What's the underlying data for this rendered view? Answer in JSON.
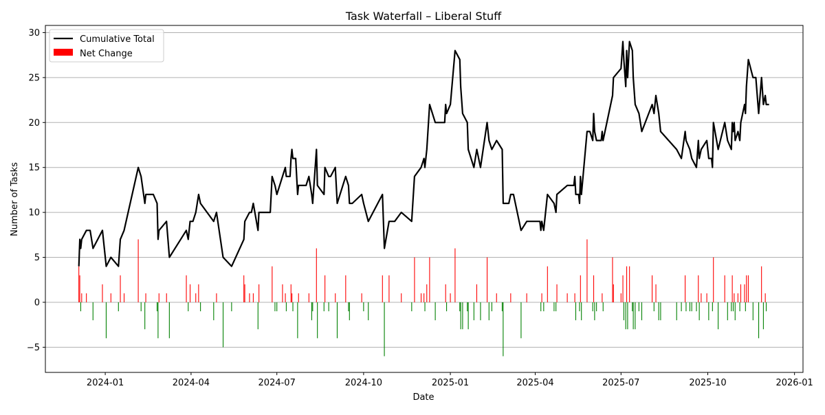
{
  "chart_data": {
    "type": "bar+line",
    "title": "Task Waterfall – Liberal Stuff",
    "xlabel": "Date",
    "ylabel": "Number of Tasks",
    "x_origin": "2024-01-01",
    "x_unit": "days since x_origin",
    "xlim_days": [
      -63.5,
      740
    ],
    "ylim": [
      -7.8,
      30.8
    ],
    "x_ticks": [
      {
        "day": 0,
        "label": "2024-01"
      },
      {
        "day": 91,
        "label": "2024-04"
      },
      {
        "day": 182,
        "label": "2024-07"
      },
      {
        "day": 274,
        "label": "2024-10"
      },
      {
        "day": 366,
        "label": "2025-01"
      },
      {
        "day": 456,
        "label": "2025-04"
      },
      {
        "day": 547,
        "label": "2025-07"
      },
      {
        "day": 639,
        "label": "2025-10"
      },
      {
        "day": 731,
        "label": "2026-01"
      }
    ],
    "y_ticks": [
      -5,
      0,
      5,
      10,
      15,
      20,
      25,
      30
    ],
    "grid": "horizontal",
    "legend_position": "top-left",
    "colors": {
      "total": "#000000",
      "positive": "#ff0000",
      "negative": "#008000",
      "grid": "#b0b0b0"
    },
    "series": [
      {
        "name": "Cumulative Total",
        "kind": "line",
        "points": [
          [
            -28,
            4
          ],
          [
            -27,
            7
          ],
          [
            -26,
            6
          ],
          [
            -25,
            7
          ],
          [
            -20,
            8
          ],
          [
            -16,
            8
          ],
          [
            -13,
            6
          ],
          [
            -3,
            8
          ],
          [
            1,
            4
          ],
          [
            6,
            5
          ],
          [
            14,
            4
          ],
          [
            16,
            7
          ],
          [
            20,
            8
          ],
          [
            35,
            15
          ],
          [
            38,
            14
          ],
          [
            42,
            11
          ],
          [
            43,
            12
          ],
          [
            51,
            12
          ],
          [
            55,
            11
          ],
          [
            56,
            7
          ],
          [
            57,
            8
          ],
          [
            65,
            9
          ],
          [
            68,
            5
          ],
          [
            86,
            8
          ],
          [
            88,
            7
          ],
          [
            90,
            9
          ],
          [
            93,
            9
          ],
          [
            96,
            10
          ],
          [
            99,
            12
          ],
          [
            101,
            11
          ],
          [
            115,
            9
          ],
          [
            118,
            10
          ],
          [
            125,
            5
          ],
          [
            134,
            4
          ],
          [
            147,
            7
          ],
          [
            148,
            9
          ],
          [
            153,
            10
          ],
          [
            155,
            10
          ],
          [
            157,
            11
          ],
          [
            162,
            8
          ],
          [
            163,
            10
          ],
          [
            175,
            10
          ],
          [
            177,
            14
          ],
          [
            180,
            13
          ],
          [
            182,
            12
          ],
          [
            188,
            14
          ],
          [
            191,
            15
          ],
          [
            192,
            14
          ],
          [
            196,
            14
          ],
          [
            197,
            16
          ],
          [
            198,
            17
          ],
          [
            199,
            16
          ],
          [
            202,
            16
          ],
          [
            204,
            12
          ],
          [
            205,
            13
          ],
          [
            213,
            13
          ],
          [
            216,
            14
          ],
          [
            219,
            12
          ],
          [
            220,
            11
          ],
          [
            224,
            17
          ],
          [
            225,
            13
          ],
          [
            232,
            12
          ],
          [
            233,
            15
          ],
          [
            237,
            14
          ],
          [
            239,
            14
          ],
          [
            244,
            15
          ],
          [
            246,
            11
          ],
          [
            255,
            14
          ],
          [
            258,
            13
          ],
          [
            259,
            11
          ],
          [
            262,
            11
          ],
          [
            272,
            12
          ],
          [
            274,
            11
          ],
          [
            279,
            9
          ],
          [
            294,
            12
          ],
          [
            296,
            6
          ],
          [
            301,
            9
          ],
          [
            307,
            9
          ],
          [
            314,
            10
          ],
          [
            325,
            9
          ],
          [
            328,
            14
          ],
          [
            335,
            15
          ],
          [
            338,
            16
          ],
          [
            339,
            15
          ],
          [
            341,
            17
          ],
          [
            344,
            22
          ],
          [
            350,
            20
          ],
          [
            360,
            20
          ],
          [
            361,
            22
          ],
          [
            362,
            21
          ],
          [
            366,
            22
          ],
          [
            371,
            28
          ],
          [
            376,
            27
          ],
          [
            377,
            24
          ],
          [
            379,
            21
          ],
          [
            384,
            20
          ],
          [
            385,
            17
          ],
          [
            391,
            15
          ],
          [
            394,
            17
          ],
          [
            398,
            15
          ],
          [
            405,
            20
          ],
          [
            407,
            18
          ],
          [
            410,
            17
          ],
          [
            415,
            18
          ],
          [
            421,
            17
          ],
          [
            422,
            11
          ],
          [
            428,
            11
          ],
          [
            430,
            12
          ],
          [
            433,
            12
          ],
          [
            441,
            8
          ],
          [
            447,
            9
          ],
          [
            461,
            9
          ],
          [
            462,
            8
          ],
          [
            463,
            9
          ],
          [
            465,
            8
          ],
          [
            469,
            12
          ],
          [
            476,
            11
          ],
          [
            478,
            10
          ],
          [
            479,
            12
          ],
          [
            490,
            13
          ],
          [
            497,
            13
          ],
          [
            498,
            14
          ],
          [
            499,
            12
          ],
          [
            502,
            12
          ],
          [
            503,
            11
          ],
          [
            504,
            14
          ],
          [
            505,
            12
          ],
          [
            511,
            19
          ],
          [
            514,
            19
          ],
          [
            517,
            18
          ],
          [
            518,
            21
          ],
          [
            519,
            19
          ],
          [
            521,
            18
          ],
          [
            526,
            18
          ],
          [
            527,
            19
          ],
          [
            528,
            18
          ],
          [
            538,
            23
          ],
          [
            539,
            25
          ],
          [
            547,
            26
          ],
          [
            549,
            29
          ],
          [
            550,
            27
          ],
          [
            552,
            24
          ],
          [
            553,
            28
          ],
          [
            554,
            25
          ],
          [
            556,
            29
          ],
          [
            559,
            28
          ],
          [
            560,
            25
          ],
          [
            562,
            22
          ],
          [
            566,
            21
          ],
          [
            569,
            19
          ],
          [
            580,
            22
          ],
          [
            582,
            21
          ],
          [
            584,
            23
          ],
          [
            587,
            21
          ],
          [
            589,
            19
          ],
          [
            606,
            17
          ],
          [
            611,
            16
          ],
          [
            615,
            19
          ],
          [
            616,
            18
          ],
          [
            620,
            17
          ],
          [
            622,
            16
          ],
          [
            627,
            15
          ],
          [
            629,
            18
          ],
          [
            630,
            16
          ],
          [
            632,
            17
          ],
          [
            638,
            18
          ],
          [
            640,
            16
          ],
          [
            643,
            16
          ],
          [
            644,
            15
          ],
          [
            645,
            20
          ],
          [
            650,
            17
          ],
          [
            657,
            20
          ],
          [
            660,
            18
          ],
          [
            664,
            17
          ],
          [
            665,
            20
          ],
          [
            666,
            19
          ],
          [
            667,
            20
          ],
          [
            668,
            18
          ],
          [
            671,
            19
          ],
          [
            673,
            18
          ],
          [
            674,
            20
          ],
          [
            678,
            22
          ],
          [
            679,
            21
          ],
          [
            680,
            24
          ],
          [
            682,
            27
          ],
          [
            687,
            25
          ],
          [
            690,
            25
          ],
          [
            693,
            21
          ],
          [
            696,
            25
          ],
          [
            698,
            22
          ],
          [
            700,
            23
          ],
          [
            701,
            22
          ],
          [
            704,
            22
          ]
        ]
      },
      {
        "name": "Net Change",
        "kind": "bar",
        "note": "change per point of Cumulative Total, same day positions"
      }
    ]
  }
}
